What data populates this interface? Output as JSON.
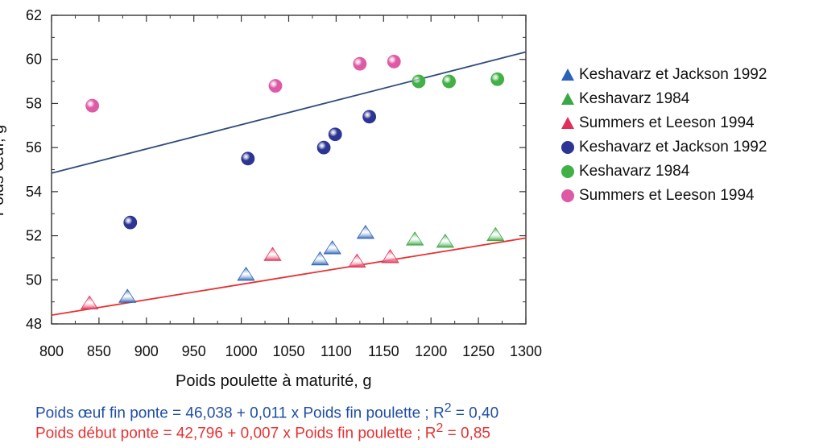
{
  "chart_data": {
    "type": "scatter",
    "xlabel": "Poids poulette à maturité, g",
    "ylabel": "Poids œuf, g",
    "xlim": [
      800,
      1300
    ],
    "ylim": [
      48,
      62
    ],
    "xticks": [
      "800",
      "850",
      "900",
      "950",
      "1000",
      "1050",
      "1100",
      "1150",
      "1200",
      "1250",
      "1300"
    ],
    "yticks": [
      "48",
      "50",
      "52",
      "54",
      "56",
      "58",
      "60",
      "62"
    ],
    "grid": false,
    "legend_position": "right",
    "series": [
      {
        "name": "Keshavarz et Jackson 1992",
        "marker": "triangle",
        "color": "#2b63b8",
        "points": [
          [
            880,
            49.2
          ],
          [
            1005,
            50.2
          ],
          [
            1083,
            50.9
          ],
          [
            1096,
            51.4
          ],
          [
            1131,
            52.1
          ]
        ]
      },
      {
        "name": "Keshavarz 1984",
        "marker": "triangle",
        "color": "#3aa845",
        "points": [
          [
            1183,
            51.8
          ],
          [
            1215,
            51.7
          ],
          [
            1268,
            52.0
          ]
        ]
      },
      {
        "name": "Summers et Leeson 1994",
        "marker": "triangle",
        "color": "#e0305a",
        "points": [
          [
            840,
            48.9
          ],
          [
            1033,
            51.1
          ],
          [
            1122,
            50.8
          ],
          [
            1157,
            51.0
          ]
        ]
      },
      {
        "name": "Keshavarz et Jackson 1992",
        "marker": "circle",
        "color": "#2c3593",
        "points": [
          [
            883,
            52.6
          ],
          [
            1007,
            55.5
          ],
          [
            1087,
            56.0
          ],
          [
            1099,
            56.6
          ],
          [
            1135,
            57.4
          ]
        ]
      },
      {
        "name": "Keshavarz 1984",
        "marker": "circle",
        "color": "#41b046",
        "points": [
          [
            1187,
            59.0
          ],
          [
            1219,
            59.0
          ],
          [
            1270,
            59.1
          ]
        ]
      },
      {
        "name": "Summers et Leeson 1994",
        "marker": "circle",
        "color": "#df5aa6",
        "points": [
          [
            843,
            57.9
          ],
          [
            1036,
            58.8
          ],
          [
            1125,
            59.8
          ],
          [
            1161,
            59.9
          ]
        ]
      }
    ],
    "regression_lines": [
      {
        "color": "#2f4c7a",
        "intercept": 46.038,
        "slope": 0.011
      },
      {
        "color": "#e53232",
        "intercept": 42.796,
        "slope": 0.007
      }
    ],
    "equations": [
      "Poids œuf fin ponte = 46,038 + 0,011 x Poids fin poulette ; R",
      "Poids début ponte = 42,796 + 0,007 x Poids fin poulette ; R"
    ],
    "equation_r2_values": [
      " = 0,40",
      " = 0,85"
    ],
    "equation_superscripts": [
      "2",
      "2"
    ],
    "equation_colors": [
      "#1f4ea3",
      "#e53232"
    ]
  }
}
